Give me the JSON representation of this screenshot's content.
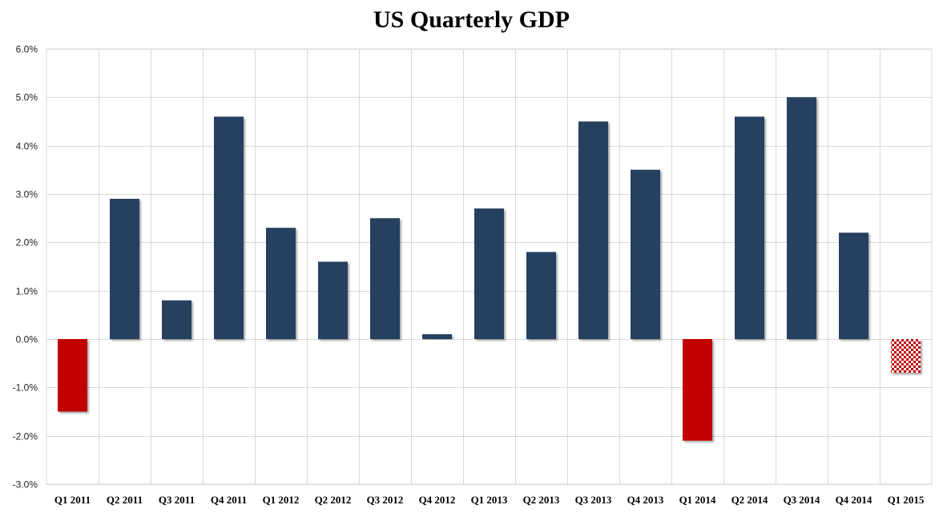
{
  "chart_data": {
    "type": "bar",
    "title": "US Quarterly GDP",
    "xlabel": "",
    "ylabel": "",
    "categories": [
      "Q1 2011",
      "Q2 2011",
      "Q3 2011",
      "Q4 2011",
      "Q1 2012",
      "Q2 2012",
      "Q3 2012",
      "Q4 2012",
      "Q1 2013",
      "Q2 2013",
      "Q3 2013",
      "Q4 2013",
      "Q1 2014",
      "Q2 2014",
      "Q3 2014",
      "Q4 2014",
      "Q1 2015"
    ],
    "values": [
      -1.5,
      2.9,
      0.8,
      4.6,
      2.3,
      1.6,
      2.5,
      0.1,
      2.7,
      1.8,
      4.5,
      3.5,
      -2.1,
      4.6,
      5.0,
      2.2,
      -0.7
    ],
    "ylim": [
      -3.0,
      6.0
    ],
    "yticks": [
      6.0,
      5.0,
      4.0,
      3.0,
      2.0,
      1.0,
      0.0,
      -1.0,
      -2.0,
      -3.0
    ],
    "ytick_labels": [
      "6.0%",
      "5.0%",
      "4.0%",
      "3.0%",
      "2.0%",
      "1.0%",
      "0.0%",
      "-1.0%",
      "-2.0%",
      "-3.0%"
    ],
    "grid": true,
    "legend": "none",
    "colors": {
      "positive": "#253f5f",
      "negative": "#c00000",
      "estimate": "#c00000",
      "grid": "#d9d9d9"
    },
    "patterned_categories": [
      "Q1 2015"
    ]
  }
}
